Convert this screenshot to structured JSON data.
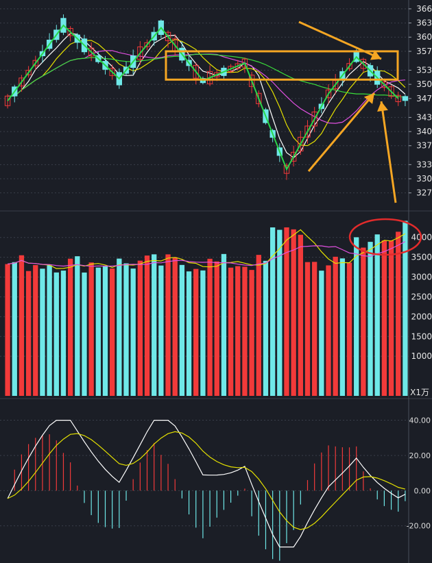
{
  "chart_data": [
    {
      "type": "candlestick",
      "panel": "price",
      "yaxis": {
        "ticks": [
          "366",
          "363",
          "360",
          "357",
          "353",
          "350",
          "347",
          "343",
          "340",
          "337",
          "333",
          "330",
          "327"
        ],
        "range": [
          3255,
          3670
        ]
      },
      "annotations": {
        "rectangle": {
          "y_range": [
            3510,
            3570
          ],
          "color": "#f5a623"
        },
        "zigzag_points": [
          [
            0,
            3465
          ],
          [
            8,
            3625
          ],
          [
            16,
            3512
          ],
          [
            22,
            3620
          ],
          [
            28,
            3508
          ],
          [
            34,
            3545
          ],
          [
            40,
            3320
          ],
          [
            46,
            3480
          ],
          [
            50,
            3558
          ],
          [
            56,
            3470
          ]
        ],
        "arrows": [
          {
            "label": "",
            "points_to": "last candle from upper left"
          },
          {
            "label": "",
            "points_to": "recent low from lower left"
          },
          {
            "label": "",
            "points_to": "recent low from below"
          }
        ]
      },
      "ohlc_count": 58
    },
    {
      "type": "bar",
      "panel": "volume",
      "unit_label": "X1万",
      "yaxis": {
        "ticks": [
          "4000",
          "3500",
          "3000",
          "2500",
          "2000",
          "1500",
          "1000"
        ],
        "range": [
          0,
          4600
        ]
      },
      "highlight": "ellipse around last bars"
    },
    {
      "type": "line",
      "panel": "macd",
      "yaxis": {
        "ticks": [
          "40.00",
          "20.00",
          "0.00",
          "-20.00"
        ],
        "range": [
          -38,
          48
        ]
      }
    }
  ],
  "colors": {
    "background": "#1b1e26",
    "up": "#f23a3a",
    "down": "#6fe8e8",
    "ma_white": "#ffffff",
    "ma_yellow": "#e6e200",
    "ma_magenta": "#e050e0",
    "ma_green": "#3adf3a",
    "zigzag": "#29d74a",
    "annotation_orange": "#f5a623",
    "ellipse_red": "#e22b2b",
    "grid": "#3a3f4a"
  }
}
